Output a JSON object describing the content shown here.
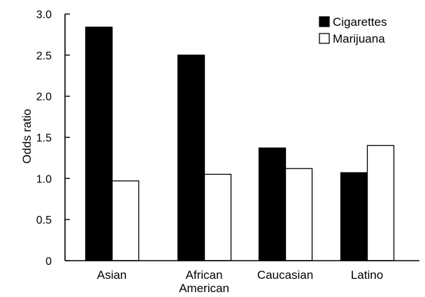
{
  "chart_data": {
    "type": "bar",
    "categories": [
      [
        "Asian"
      ],
      [
        "African",
        "American"
      ],
      [
        "Caucasian"
      ],
      [
        "Latino"
      ]
    ],
    "series": [
      {
        "name": "Cigarettes",
        "color": "#000000",
        "values": [
          2.84,
          2.5,
          1.37,
          1.07
        ]
      },
      {
        "name": "Marijuana",
        "color": "#ffffff",
        "values": [
          0.97,
          1.05,
          1.12,
          1.4
        ]
      }
    ],
    "ylabel": "Odds ratio",
    "ylim": [
      0,
      3.0
    ],
    "yticks": [
      "0",
      "0.5",
      "1.0",
      "1.5",
      "2.0",
      "2.5",
      "3.0"
    ],
    "legend_position": "top-right",
    "grid": false
  }
}
